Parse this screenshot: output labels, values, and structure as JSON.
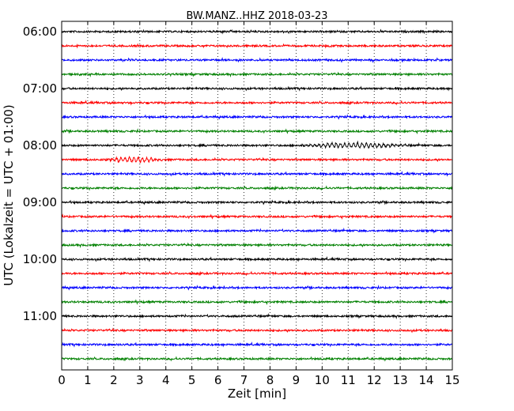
{
  "chart_data": {
    "type": "line",
    "title": "BW.MANZ..HHZ 2018-03-23",
    "xlabel": "Zeit  [min]",
    "ylabel": "UTC (Lokalzeit = UTC + 01:00)",
    "xlim": [
      0,
      15
    ],
    "x_ticks": [
      "0",
      "1",
      "2",
      "3",
      "4",
      "5",
      "6",
      "7",
      "8",
      "9",
      "10",
      "11",
      "12",
      "13",
      "14",
      "15"
    ],
    "y_ticks": [
      "06:00",
      "07:00",
      "08:00",
      "09:00",
      "10:00",
      "11:00"
    ],
    "trace_colors": [
      "#000000",
      "#ff0000",
      "#0000ff",
      "#008000"
    ],
    "grid": "vertical dotted at each minute",
    "traces": [
      {
        "start": "06:00",
        "color": "#000000"
      },
      {
        "start": "06:15",
        "color": "#ff0000"
      },
      {
        "start": "06:30",
        "color": "#0000ff"
      },
      {
        "start": "06:45",
        "color": "#008000"
      },
      {
        "start": "07:00",
        "color": "#000000"
      },
      {
        "start": "07:15",
        "color": "#ff0000"
      },
      {
        "start": "07:30",
        "color": "#0000ff"
      },
      {
        "start": "07:45",
        "color": "#008000"
      },
      {
        "start": "08:00",
        "color": "#000000",
        "event_min": [
          9,
          13.4
        ]
      },
      {
        "start": "08:15",
        "color": "#ff0000",
        "event_min": [
          1.6,
          4
        ]
      },
      {
        "start": "08:30",
        "color": "#0000ff"
      },
      {
        "start": "08:45",
        "color": "#008000"
      },
      {
        "start": "09:00",
        "color": "#000000"
      },
      {
        "start": "09:15",
        "color": "#ff0000"
      },
      {
        "start": "09:30",
        "color": "#0000ff"
      },
      {
        "start": "09:45",
        "color": "#008000"
      },
      {
        "start": "10:00",
        "color": "#000000"
      },
      {
        "start": "10:15",
        "color": "#ff0000"
      },
      {
        "start": "10:30",
        "color": "#0000ff"
      },
      {
        "start": "10:45",
        "color": "#008000"
      },
      {
        "start": "11:00",
        "color": "#000000"
      },
      {
        "start": "11:15",
        "color": "#ff0000"
      },
      {
        "start": "11:30",
        "color": "#0000ff"
      },
      {
        "start": "11:45",
        "color": "#008000"
      }
    ]
  }
}
